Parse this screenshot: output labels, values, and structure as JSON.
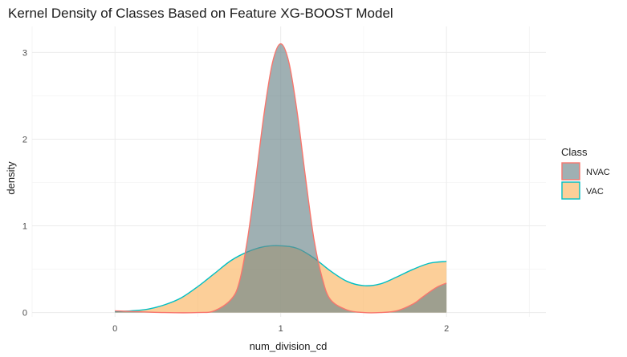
{
  "chart_data": {
    "type": "area",
    "title": "Kernel Density of Classes Based on Feature XG-BOOST Model",
    "xlabel": "num_division_cd",
    "ylabel": "density",
    "xlim": [
      -0.5,
      2.6
    ],
    "ylim": [
      -0.05,
      3.3
    ],
    "x_ticks": [
      0,
      1,
      2
    ],
    "y_ticks": [
      0,
      1,
      2,
      3
    ],
    "grid": true,
    "legend": {
      "title": "Class",
      "position": "right"
    },
    "series": [
      {
        "name": "NVAC",
        "fill": "#6b868b",
        "stroke": "#f8766d",
        "x": [
          0,
          0.3,
          0.5,
          0.6,
          0.7,
          0.75,
          0.8,
          0.85,
          0.9,
          0.95,
          1.0,
          1.05,
          1.1,
          1.15,
          1.2,
          1.25,
          1.3,
          1.4,
          1.5,
          1.6,
          1.7,
          1.8,
          1.85,
          1.9,
          1.95,
          2.0
        ],
        "y": [
          0.02,
          0.0,
          0.0,
          0.02,
          0.15,
          0.35,
          0.85,
          1.55,
          2.3,
          2.88,
          3.1,
          2.88,
          2.3,
          1.55,
          0.85,
          0.4,
          0.15,
          0.03,
          0.0,
          0.0,
          0.02,
          0.1,
          0.17,
          0.24,
          0.3,
          0.34
        ]
      },
      {
        "name": "VAC",
        "fill": "#fbb662",
        "stroke": "#00bfc4",
        "x": [
          0,
          0.1,
          0.2,
          0.3,
          0.4,
          0.5,
          0.6,
          0.7,
          0.8,
          0.9,
          1.0,
          1.1,
          1.2,
          1.3,
          1.4,
          1.5,
          1.6,
          1.7,
          1.8,
          1.9,
          2.0
        ],
        "y": [
          0.01,
          0.02,
          0.04,
          0.09,
          0.17,
          0.3,
          0.45,
          0.6,
          0.7,
          0.76,
          0.77,
          0.74,
          0.63,
          0.48,
          0.36,
          0.31,
          0.33,
          0.41,
          0.5,
          0.57,
          0.59
        ]
      }
    ]
  }
}
